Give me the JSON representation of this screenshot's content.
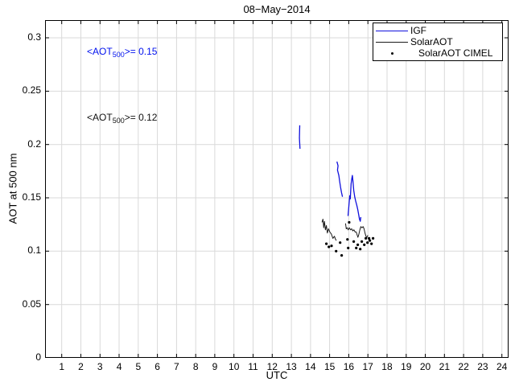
{
  "chart_data": {
    "type": "line",
    "title": "08−May−2014",
    "xlabel": "UTC",
    "ylabel": "AOT at 500 nm",
    "xlim": [
      0.13,
      24.35
    ],
    "ylim": [
      0,
      0.3166
    ],
    "grid": true,
    "x_ticks": [
      1,
      2,
      3,
      4,
      5,
      6,
      7,
      8,
      9,
      10,
      11,
      12,
      13,
      14,
      15,
      16,
      17,
      18,
      19,
      20,
      21,
      22,
      23,
      24
    ],
    "y_ticks": [
      {
        "value": 0,
        "label": "0"
      },
      {
        "value": 0.05,
        "label": "0.05"
      },
      {
        "value": 0.1,
        "label": "0.1"
      },
      {
        "value": 0.15,
        "label": "0.15"
      },
      {
        "value": 0.2,
        "label": "0.2"
      },
      {
        "value": 0.25,
        "label": "0.25"
      },
      {
        "value": 0.3,
        "label": "0.3"
      }
    ],
    "colors": {
      "grid": "#d9d9d9",
      "axis": "#000000",
      "igf_blue": "#1111dd",
      "solar_black": "#1a1a1a",
      "cimel_dot": "#000000"
    },
    "legend": {
      "position": "top-right",
      "entries": [
        {
          "label": "IGF",
          "marker": "line",
          "color": "#1111dd"
        },
        {
          "label": "SolarAOT",
          "marker": "line",
          "color": "#1a1a1a"
        },
        {
          "label": "SolarAOT CIMEL",
          "marker": "dot",
          "color": "#000000"
        }
      ]
    },
    "annotations": [
      {
        "prefix": "<AOT",
        "sub": "500",
        "suffix": ">= 0.15",
        "color": "#0011ee",
        "x": 2.3,
        "y": 0.2857
      },
      {
        "prefix": "<AOT",
        "sub": "500",
        "suffix": ">= 0.12",
        "color": "#111111",
        "x": 2.3,
        "y": 0.2239
      }
    ],
    "series": [
      {
        "name": "IGF",
        "type": "line",
        "color": "#1111dd",
        "width": 1.3,
        "segments": [
          [
            [
              13.45,
              0.196
            ],
            [
              13.42,
              0.206
            ],
            [
              13.44,
              0.218
            ]
          ],
          [
            [
              15.38,
              0.184
            ],
            [
              15.44,
              0.18
            ],
            [
              15.41,
              0.176
            ],
            [
              15.48,
              0.171
            ],
            [
              15.52,
              0.166
            ],
            [
              15.57,
              0.16
            ],
            [
              15.62,
              0.155
            ],
            [
              15.67,
              0.151
            ]
          ],
          [
            [
              15.96,
              0.133
            ],
            [
              16.0,
              0.141
            ],
            [
              16.05,
              0.152
            ],
            [
              16.08,
              0.149
            ],
            [
              16.12,
              0.163
            ],
            [
              16.16,
              0.168
            ],
            [
              16.19,
              0.171
            ],
            [
              16.22,
              0.165
            ],
            [
              16.26,
              0.157
            ],
            [
              16.31,
              0.151
            ],
            [
              16.36,
              0.147
            ],
            [
              16.42,
              0.143
            ],
            [
              16.47,
              0.139
            ],
            [
              16.52,
              0.134
            ],
            [
              16.56,
              0.13
            ],
            [
              16.6,
              0.128
            ],
            [
              16.63,
              0.132
            ]
          ]
        ]
      },
      {
        "name": "SolarAOT",
        "type": "line",
        "color": "#1a1a1a",
        "width": 1,
        "segments": [
          [
            [
              14.6,
              0.127
            ],
            [
              14.65,
              0.13
            ],
            [
              14.69,
              0.122
            ],
            [
              14.73,
              0.128
            ],
            [
              14.78,
              0.12
            ],
            [
              14.83,
              0.124
            ],
            [
              14.88,
              0.117
            ],
            [
              14.94,
              0.121
            ],
            [
              15.01,
              0.118
            ],
            [
              15.09,
              0.116
            ],
            [
              15.17,
              0.112
            ],
            [
              15.25,
              0.114
            ],
            [
              15.31,
              0.111
            ],
            [
              15.35,
              0.11
            ]
          ],
          [
            [
              15.83,
              0.126
            ],
            [
              15.87,
              0.121
            ],
            [
              15.92,
              0.122
            ],
            [
              15.97,
              0.12
            ],
            [
              16.03,
              0.122
            ],
            [
              16.09,
              0.12
            ],
            [
              16.15,
              0.121
            ],
            [
              16.21,
              0.119
            ],
            [
              16.27,
              0.12
            ],
            [
              16.33,
              0.118
            ],
            [
              16.39,
              0.118
            ],
            [
              16.44,
              0.115
            ],
            [
              16.48,
              0.113
            ],
            [
              16.53,
              0.116
            ],
            [
              16.58,
              0.12
            ],
            [
              16.63,
              0.123
            ],
            [
              16.69,
              0.122
            ],
            [
              16.75,
              0.123
            ],
            [
              16.8,
              0.121
            ],
            [
              16.85,
              0.117
            ],
            [
              16.9,
              0.114
            ],
            [
              16.95,
              0.113
            ],
            [
              17.0,
              0.115
            ]
          ]
        ]
      },
      {
        "name": "SolarAOT CIMEL",
        "type": "scatter",
        "color": "#000000",
        "points": [
          [
            14.83,
            0.107
          ],
          [
            14.96,
            0.104
          ],
          [
            15.1,
            0.105
          ],
          [
            15.34,
            0.1
          ],
          [
            15.55,
            0.108
          ],
          [
            15.63,
            0.096
          ],
          [
            15.93,
            0.111
          ],
          [
            15.97,
            0.103
          ],
          [
            16.02,
            0.127
          ],
          [
            16.26,
            0.109
          ],
          [
            16.39,
            0.103
          ],
          [
            16.47,
            0.106
          ],
          [
            16.6,
            0.102
          ],
          [
            16.68,
            0.109
          ],
          [
            16.81,
            0.106
          ],
          [
            16.89,
            0.112
          ],
          [
            16.98,
            0.108
          ],
          [
            17.06,
            0.112
          ],
          [
            17.1,
            0.11
          ],
          [
            17.19,
            0.107
          ],
          [
            17.27,
            0.112
          ]
        ]
      }
    ]
  }
}
